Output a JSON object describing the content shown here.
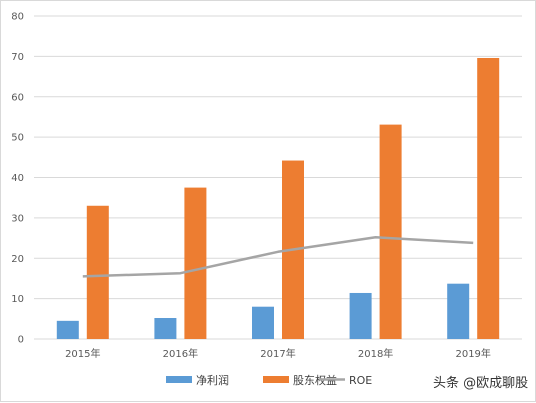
{
  "chart_data": {
    "type": "bar",
    "categories": [
      "2015年",
      "2016年",
      "2017年",
      "2018年",
      "2019年"
    ],
    "series": [
      {
        "name": "净利润",
        "kind": "bar",
        "color": "#5b9bd5",
        "values": [
          4.5,
          5.2,
          8.0,
          11.4,
          13.7
        ]
      },
      {
        "name": "股东权益",
        "kind": "bar",
        "color": "#ed7d31",
        "values": [
          33.0,
          37.5,
          44.2,
          53.1,
          69.6
        ]
      },
      {
        "name": "ROE",
        "kind": "line",
        "color": "#a5a5a5",
        "values": [
          15.5,
          16.3,
          21.6,
          25.2,
          23.8
        ]
      }
    ],
    "ylim": [
      0,
      80
    ],
    "yticks": [
      0,
      10,
      20,
      30,
      40,
      50,
      60,
      70,
      80
    ],
    "grid": true,
    "legend": "bottom"
  },
  "watermark": "头条 @欧成聊股"
}
